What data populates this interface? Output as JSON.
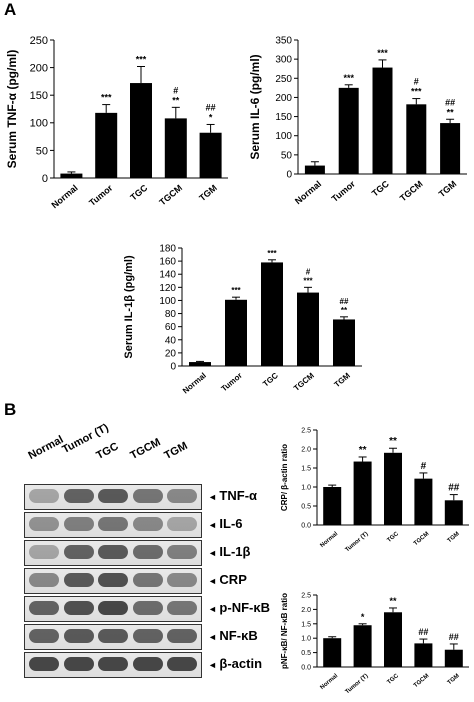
{
  "panels": {
    "a": "A",
    "b": "B"
  },
  "categories_a": [
    "Normal",
    "Tumor",
    "TGC",
    "TGCM",
    "TGM"
  ],
  "categories_b": [
    "Normal",
    "Tumor (T)",
    "TGC",
    "TGCM",
    "TGM"
  ],
  "chart_data": [
    {
      "id": "tnf",
      "type": "bar",
      "ylabel": "Serum TNF-α (pg/ml)",
      "ylim": [
        0,
        250
      ],
      "yticks": [
        0,
        50,
        100,
        150,
        200,
        250
      ],
      "values": [
        8,
        118,
        172,
        108,
        82
      ],
      "errors": [
        3,
        15,
        30,
        20,
        15
      ],
      "annotations": [
        "",
        "***",
        "***",
        "#\n**",
        "##\n*"
      ],
      "grid": false
    },
    {
      "id": "il6",
      "type": "bar",
      "ylabel": "Serum IL-6 (pg/ml)",
      "ylim": [
        0,
        350
      ],
      "yticks": [
        0,
        50,
        100,
        150,
        200,
        250,
        300,
        350
      ],
      "values": [
        22,
        225,
        278,
        182,
        133
      ],
      "errors": [
        10,
        8,
        20,
        15,
        10
      ],
      "annotations": [
        "",
        "***",
        "***",
        "#\n***",
        "##\n**"
      ],
      "grid": false
    },
    {
      "id": "il1b",
      "type": "bar",
      "ylabel": "Serum IL-1β (pg/ml)",
      "ylim": [
        0,
        180
      ],
      "yticks": [
        0,
        20,
        40,
        60,
        80,
        100,
        120,
        140,
        160,
        180
      ],
      "values": [
        6,
        101,
        158,
        112,
        71
      ],
      "errors": [
        1,
        4,
        4,
        8,
        4
      ],
      "annotations": [
        "",
        "***",
        "***",
        "#\n***",
        "##\n**"
      ],
      "grid": false
    },
    {
      "id": "crp",
      "type": "bar",
      "ylabel": "CRP/ β-actin ratio",
      "ylim": [
        0,
        2.5
      ],
      "yticks": [
        0.0,
        0.5,
        1.0,
        1.5,
        2.0,
        2.5
      ],
      "values": [
        1.0,
        1.67,
        1.9,
        1.22,
        0.65
      ],
      "errors": [
        0.05,
        0.12,
        0.12,
        0.15,
        0.15
      ],
      "annotations": [
        "",
        "**",
        "**",
        "#",
        "##"
      ],
      "grid": false
    },
    {
      "id": "nfkb",
      "type": "bar",
      "ylabel": "pNF-κB/ NF-κB ratio",
      "ylim": [
        0,
        2.5
      ],
      "yticks": [
        0.0,
        0.5,
        1.0,
        1.5,
        2.0,
        2.5
      ],
      "values": [
        1.0,
        1.45,
        1.9,
        0.82,
        0.6
      ],
      "errors": [
        0.05,
        0.05,
        0.15,
        0.15,
        0.2
      ],
      "annotations": [
        "",
        "*",
        "**",
        "##",
        "##"
      ],
      "grid": false
    }
  ],
  "blot": {
    "lanes": [
      "Normal",
      "Tumor (T)",
      "TGC",
      "TGCM",
      "TGM"
    ],
    "rows": [
      {
        "label": "TNF-α",
        "intensity": [
          0.35,
          0.7,
          0.75,
          0.6,
          0.5
        ]
      },
      {
        "label": "IL-6",
        "intensity": [
          0.45,
          0.55,
          0.6,
          0.5,
          0.35
        ]
      },
      {
        "label": "IL-1β",
        "intensity": [
          0.35,
          0.7,
          0.75,
          0.65,
          0.55
        ]
      },
      {
        "label": "CRP",
        "intensity": [
          0.5,
          0.75,
          0.8,
          0.6,
          0.5
        ]
      },
      {
        "label": "p-NF-κB",
        "intensity": [
          0.7,
          0.8,
          0.85,
          0.65,
          0.6
        ]
      },
      {
        "label": "NF-κB",
        "intensity": [
          0.7,
          0.75,
          0.75,
          0.7,
          0.7
        ]
      },
      {
        "label": "β-actin",
        "intensity": [
          0.85,
          0.85,
          0.85,
          0.85,
          0.85
        ]
      }
    ]
  },
  "colors": {
    "bar": "#000000",
    "axis": "#000000",
    "blot_band": "#2a2a2a"
  }
}
